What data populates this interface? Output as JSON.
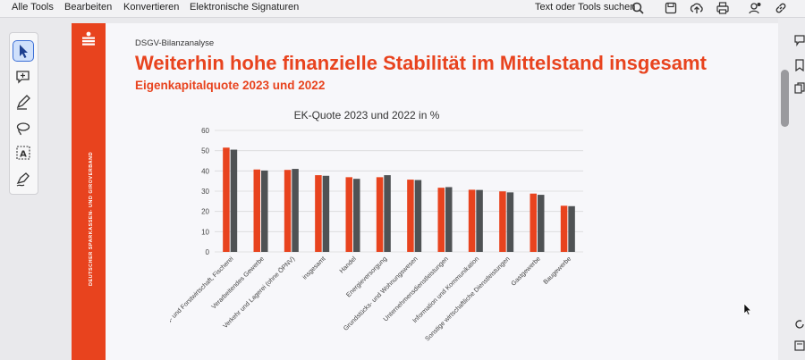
{
  "menu": {
    "items": [
      "Alle Tools",
      "Bearbeiten",
      "Konvertieren",
      "Elektronische Signaturen"
    ],
    "search_label": "Text oder Tools suchen"
  },
  "toolbar_icons": [
    "search-icon",
    "save-icon",
    "upload-icon",
    "print-icon",
    "share-icon",
    "link-icon"
  ],
  "left_tools": [
    "select-cursor-icon",
    "add-comment-icon",
    "pen-icon",
    "lasso-icon",
    "text-select-icon",
    "sign-icon"
  ],
  "document": {
    "kicker": "DSGV-Bilanzanalyse",
    "headline": "Weiterhin hohe finanzielle Stabilität im Mittelstand insgesamt",
    "subline": "Eigenkapitalquote 2023 und 2022",
    "sidebar_text": "DEUTSCHER SPARKASSEN- UND GIROVERBAND"
  },
  "colors": {
    "brand_red": "#e8431e",
    "bar_2023": "#e8431e",
    "bar_2022": "#4f5254",
    "grid": "#d8d8da"
  },
  "chart_data": {
    "type": "bar",
    "title": "EK-Quote 2023 und 2022 in %",
    "categories": [
      "Land- und Forstwirtschaft, Fischerei",
      "Verarbeitendes Gewerbe",
      "Verkehr und Lagerei (ohne ÖPNV)",
      "insgesamt",
      "Handel",
      "Energieversorgung",
      "Grundstücks- und Wohnungswesen",
      "Unternehmensdienstleistungen",
      "Information und Kommunikation",
      "Sonstige wirtschaftliche Dienstleistungen",
      "Gastgewerbe",
      "Baugewerbe"
    ],
    "series": [
      {
        "values": [
          51.5,
          40.7,
          40.5,
          37.9,
          36.9,
          36.9,
          35.7,
          31.7,
          30.7,
          29.9,
          28.8,
          22.8
        ]
      },
      {
        "values": [
          50.5,
          40.2,
          41.0,
          37.6,
          36.1,
          37.9,
          35.5,
          32.0,
          30.6,
          29.4,
          28.2,
          22.6
        ]
      }
    ],
    "ylim": [
      0,
      60
    ],
    "yticks": [
      0,
      10,
      20,
      30,
      40,
      50,
      60
    ],
    "grid": true
  }
}
